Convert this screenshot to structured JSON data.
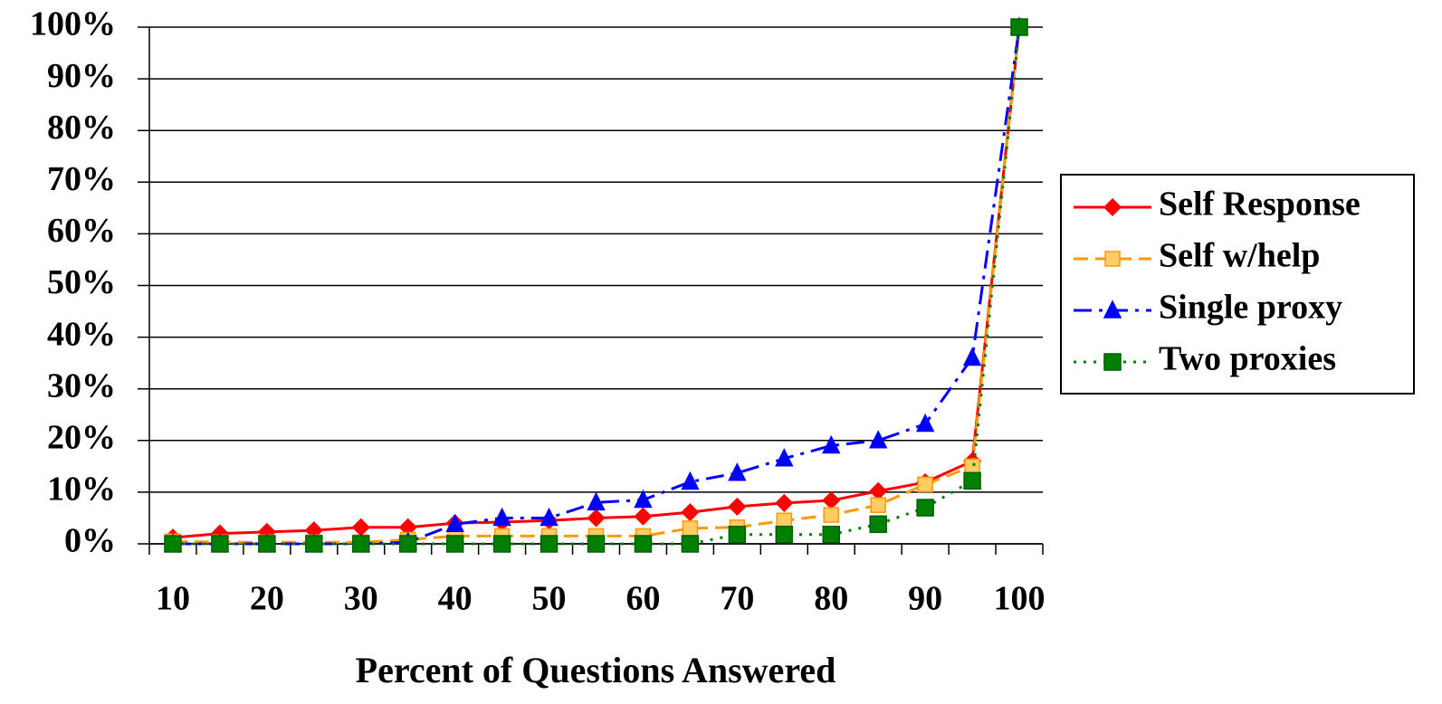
{
  "chart_data": {
    "type": "line",
    "x_label": "Percent of Questions Answered",
    "categories": [
      "10",
      null,
      "20",
      null,
      "30",
      null,
      "40",
      null,
      "50",
      null,
      "60",
      null,
      "70",
      null,
      "80",
      null,
      "90",
      null,
      "100"
    ],
    "ylim": [
      0,
      100
    ],
    "yticks": [
      {
        "value": 0,
        "label": "0%"
      },
      {
        "value": 10,
        "label": "10%"
      },
      {
        "value": 20,
        "label": "20%"
      },
      {
        "value": 30,
        "label": "30%"
      },
      {
        "value": 40,
        "label": "40%"
      },
      {
        "value": 50,
        "label": "50%"
      },
      {
        "value": 60,
        "label": "60%"
      },
      {
        "value": 70,
        "label": "70%"
      },
      {
        "value": 80,
        "label": "80%"
      },
      {
        "value": 90,
        "label": "90%"
      },
      {
        "value": 100,
        "label": "100%"
      }
    ],
    "grid": true,
    "legend": "right",
    "series": [
      {
        "name": "Self Response",
        "color": "#ff0000",
        "dash": "solid",
        "marker": "diamond",
        "values": [
          1.2,
          2,
          2.3,
          2.6,
          3.2,
          3.2,
          4,
          4.2,
          4.5,
          5,
          5.3,
          6.1,
          7.2,
          7.9,
          8.4,
          10.2,
          11.9,
          16,
          100
        ]
      },
      {
        "name": "Self w/help",
        "color": "#ff9900",
        "dash": "dashed",
        "marker": "open-square",
        "values": [
          0.5,
          0.3,
          0.3,
          0.3,
          0.3,
          0.8,
          1.5,
          1.5,
          1.5,
          1.5,
          1.5,
          3,
          3.2,
          4.5,
          5.6,
          7.5,
          11.5,
          15,
          100
        ]
      },
      {
        "name": "Single proxy",
        "color": "#0000ff",
        "dash": "dashdot",
        "marker": "triangle",
        "values": [
          0,
          0,
          0,
          0,
          0,
          0.3,
          3.8,
          5,
          5,
          8,
          8.5,
          12,
          13.7,
          16.5,
          19,
          20,
          23.2,
          36,
          100
        ]
      },
      {
        "name": "Two proxies",
        "color": "#008000",
        "dash": "dotted",
        "marker": "square",
        "values": [
          0,
          0,
          0,
          0,
          0,
          0,
          0,
          0,
          0,
          0,
          0,
          0,
          1.8,
          1.8,
          1.8,
          3.8,
          7,
          12.2,
          100
        ]
      }
    ]
  }
}
